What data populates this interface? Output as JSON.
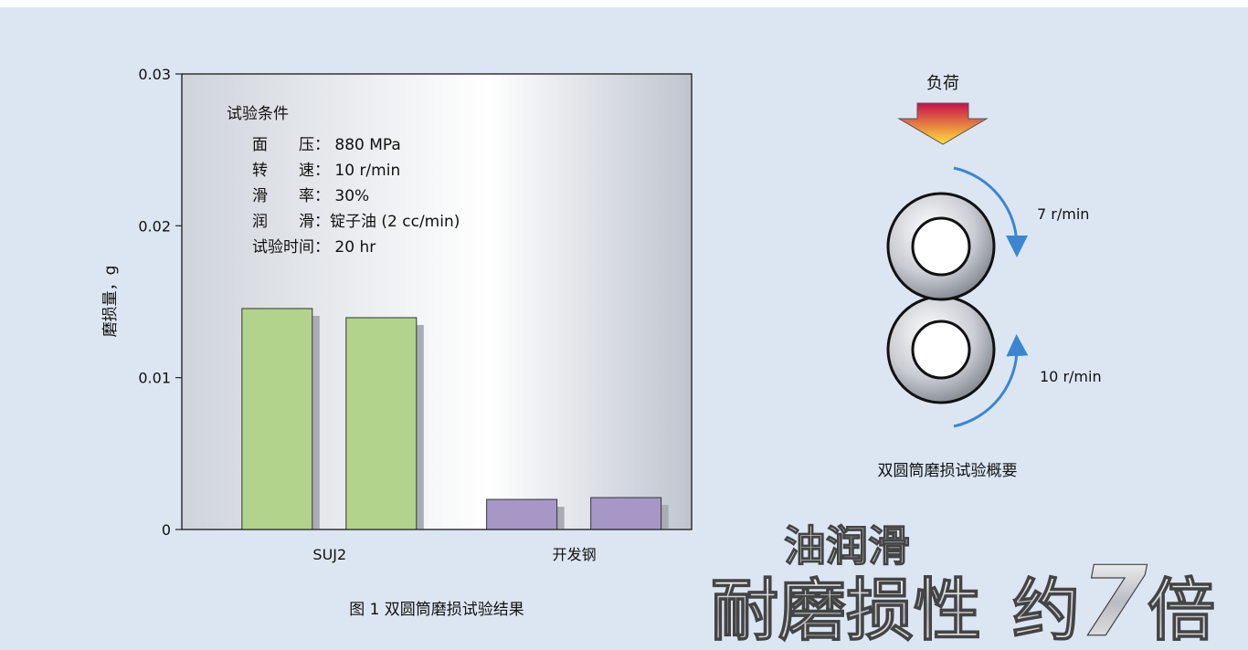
{
  "chart_data": {
    "type": "bar",
    "categories": [
      "SUJ2",
      "开发钢"
    ],
    "colors": [
      "#b2d38c",
      "#a697c7"
    ],
    "series": [
      {
        "values": [
          0.01455,
          0.00198
        ]
      },
      {
        "values": [
          0.01395,
          0.0021
        ]
      }
    ],
    "ylim": [
      0,
      0.03
    ],
    "yticks": [
      0,
      0.01,
      0.02,
      0.03
    ],
    "ylabel": "磨损量，g",
    "annotation": {
      "title": "试验条件",
      "lines": [
        "面　　压： 880 MPa",
        "转　　速： 10 r/min",
        "滑　　率： 30%",
        "润　　滑：锭子油 (2 cc/min)",
        "试验时间： 20 hr"
      ]
    },
    "caption": "图 1 双圆筒磨损试验结果"
  },
  "diagram": {
    "load": "负荷",
    "upper_speed": "7 r/min",
    "lower_speed": "10 r/min",
    "caption": "双圆筒磨损试验概要"
  },
  "headline": {
    "line1": "油润滑",
    "line2a": "耐磨损性",
    "line2b": "约",
    "line2c": "7",
    "line2d": "倍"
  }
}
